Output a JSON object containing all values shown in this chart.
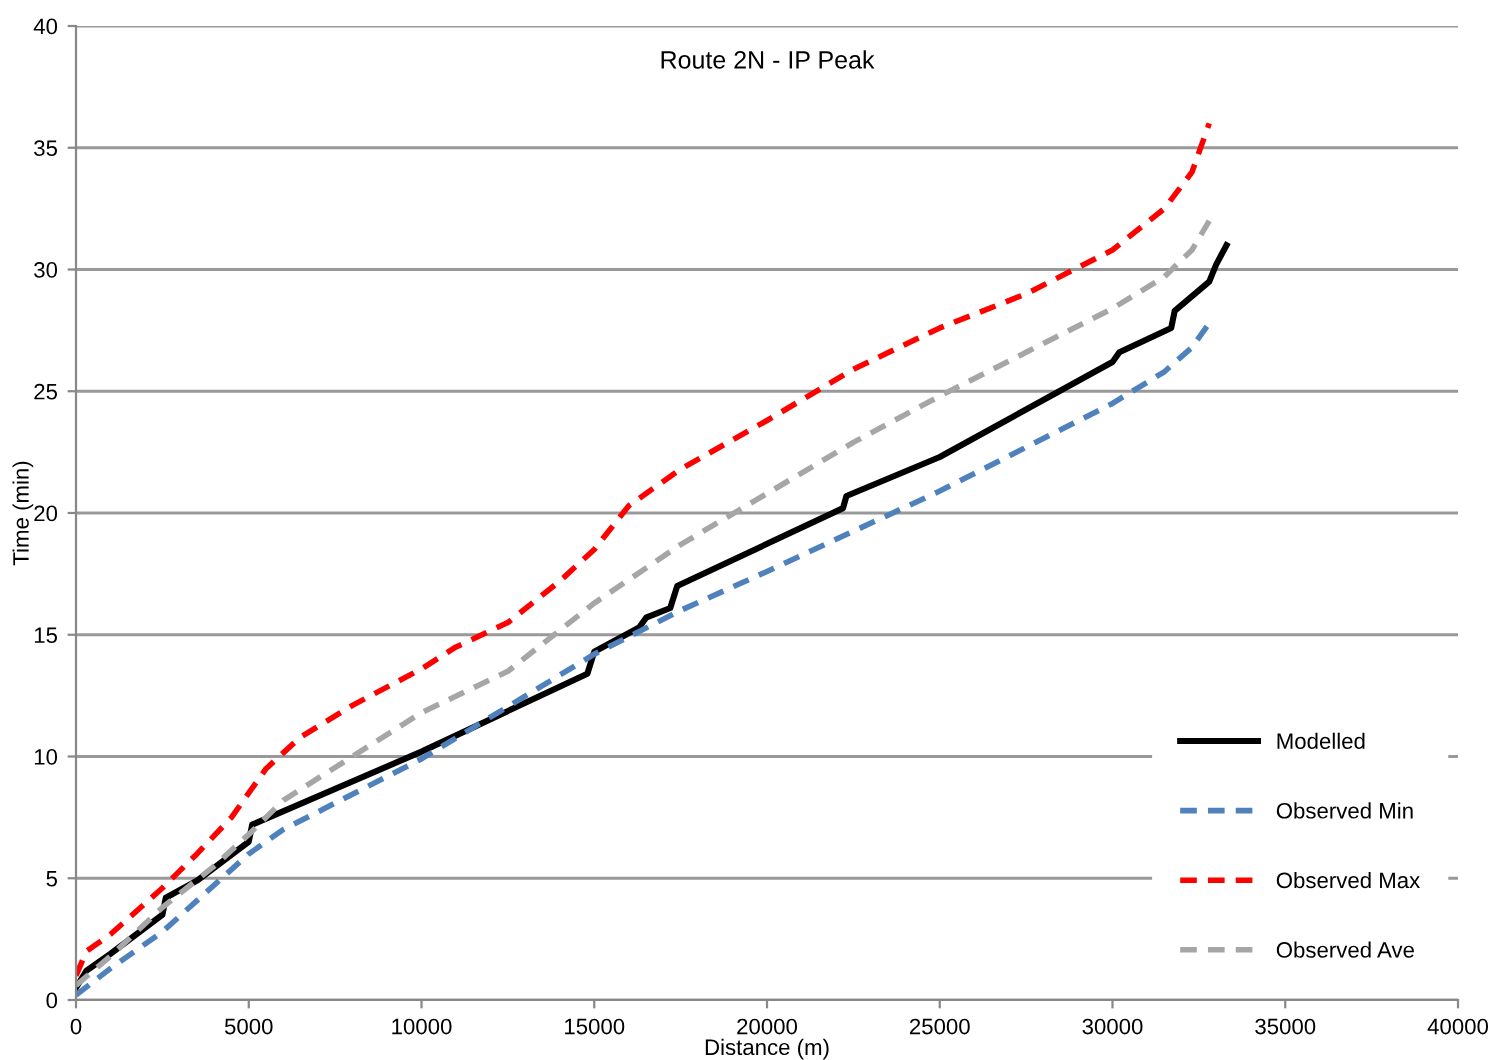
{
  "chart_data": {
    "type": "line",
    "title": "Route 2N - IP Peak",
    "xlabel": "Distance (m)",
    "ylabel": "Time (min)",
    "xlim": [
      0,
      40000
    ],
    "xticks": [
      0,
      5000,
      10000,
      15000,
      20000,
      25000,
      30000,
      35000,
      40000
    ],
    "ylim": [
      0,
      40
    ],
    "yticks": [
      0,
      5,
      10,
      15,
      20,
      25,
      30,
      35,
      40
    ],
    "grid": "y",
    "legend": "bottom right",
    "series": [
      {
        "name": "Modelled",
        "color": "#000000",
        "line_style": "solid",
        "x": [
          0,
          300,
          1000,
          2500,
          2600,
          3500,
          5000,
          5100,
          10000,
          14800,
          15000,
          16300,
          16500,
          17200,
          17400,
          22200,
          22300,
          25000,
          30000,
          30200,
          31700,
          31800,
          32800,
          33000,
          33300
        ],
        "values": [
          0.5,
          1.2,
          1.9,
          3.5,
          4.2,
          4.9,
          6.5,
          7.2,
          10.2,
          13.4,
          14.3,
          15.3,
          15.7,
          16.1,
          17.0,
          20.2,
          20.7,
          22.3,
          26.2,
          26.6,
          27.6,
          28.3,
          29.5,
          30.2,
          31.0
        ]
      },
      {
        "name": "Observed Min",
        "color": "#4f81bd",
        "line_style": "dashed",
        "x": [
          0,
          1000,
          2500,
          5000,
          6000,
          10000,
          15000,
          17500,
          20000,
          25000,
          30000,
          31500,
          32300,
          32800
        ],
        "values": [
          0.2,
          1.3,
          2.8,
          6.0,
          7.0,
          9.9,
          14.2,
          16.0,
          17.6,
          20.9,
          24.5,
          25.8,
          26.8,
          27.8
        ]
      },
      {
        "name": "Observed Max",
        "color": "#ff0000",
        "line_style": "dashed",
        "x": [
          0,
          300,
          1000,
          2500,
          3500,
          4500,
          5500,
          6500,
          8000,
          10000,
          11000,
          12500,
          14000,
          15000,
          16000,
          17500,
          20000,
          22500,
          25000,
          27500,
          30000,
          31500,
          32300,
          32800
        ],
        "values": [
          1.0,
          2.0,
          2.7,
          4.6,
          6.0,
          7.5,
          9.5,
          10.8,
          12.1,
          13.6,
          14.5,
          15.5,
          17.2,
          18.5,
          20.3,
          21.8,
          23.8,
          25.9,
          27.6,
          29.0,
          30.8,
          32.5,
          34.0,
          36.0
        ]
      },
      {
        "name": "Observed Ave",
        "color": "#a6a6a6",
        "line_style": "dashed",
        "x": [
          0,
          1000,
          2500,
          4000,
          5000,
          6000,
          8000,
          10000,
          12500,
          15000,
          17500,
          20000,
          22500,
          25000,
          27500,
          30000,
          31500,
          32300,
          32800
        ],
        "values": [
          0.6,
          1.8,
          3.8,
          5.5,
          6.8,
          8.2,
          10.0,
          11.8,
          13.5,
          16.3,
          18.7,
          20.8,
          22.9,
          24.8,
          26.6,
          28.4,
          29.7,
          30.8,
          32.0
        ]
      }
    ]
  }
}
